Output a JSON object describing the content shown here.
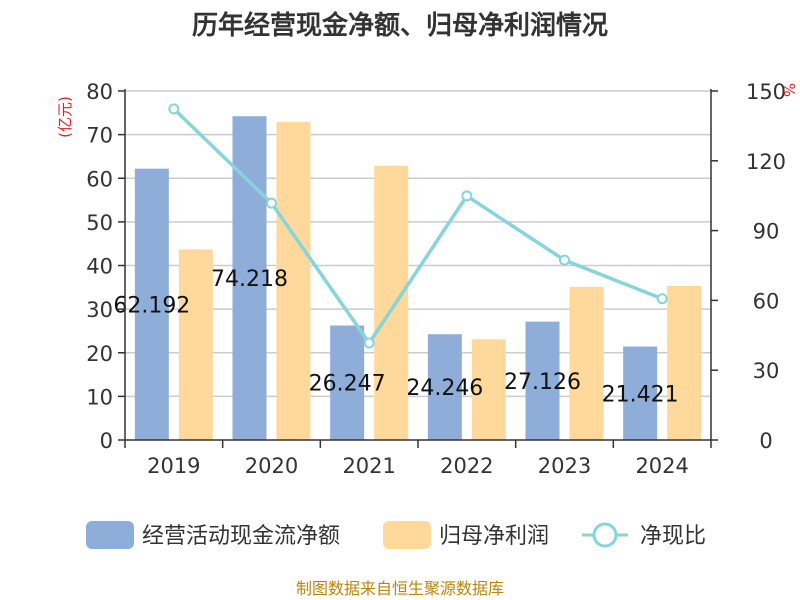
{
  "chart_data": {
    "type": "bar",
    "title": "历年经营现金净额、归母净利润情况",
    "categories": [
      "2019",
      "2020",
      "2021",
      "2022",
      "2023",
      "2024"
    ],
    "series": [
      {
        "name": "经营活动现金流净额",
        "type": "bar",
        "axis": "left",
        "color": "#8eadd9",
        "values": [
          62.192,
          74.218,
          26.247,
          24.246,
          27.126,
          21.421
        ],
        "labels": [
          "62.192",
          "74.218",
          "26.247",
          "24.246",
          "27.126",
          "21.421"
        ]
      },
      {
        "name": "归母净利润",
        "type": "bar",
        "axis": "left",
        "color": "#ffd99b",
        "values": [
          43.7,
          72.9,
          62.9,
          23.1,
          35.1,
          35.3
        ]
      },
      {
        "name": "净现比",
        "type": "line",
        "axis": "right",
        "color": "#86d4dc",
        "values": [
          142.3,
          101.8,
          41.7,
          104.9,
          77.3,
          60.7
        ]
      }
    ],
    "left_axis": {
      "label": "(亿元)",
      "ylim": [
        0,
        80
      ],
      "ticks": [
        "0",
        "10",
        "20",
        "30",
        "40",
        "50",
        "60",
        "70",
        "80"
      ]
    },
    "right_axis": {
      "label": "%",
      "ylim": [
        0,
        150
      ],
      "ticks": [
        "0",
        "30",
        "60",
        "90",
        "120",
        "150"
      ]
    },
    "legend_position": "bottom",
    "source": "制图数据来自恒生聚源数据库"
  }
}
